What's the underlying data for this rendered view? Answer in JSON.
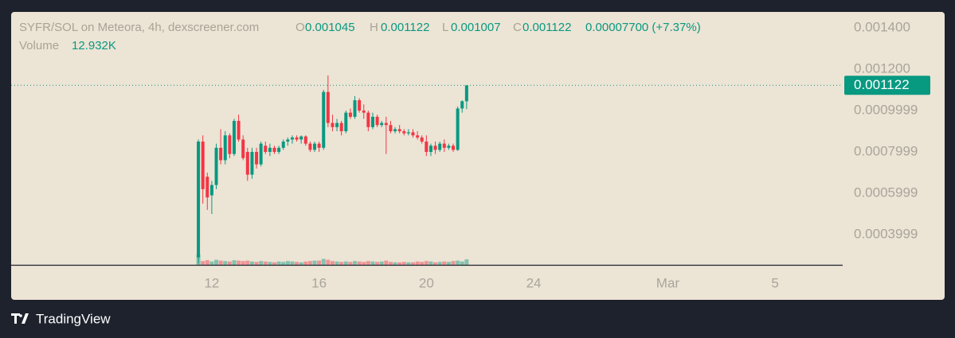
{
  "chart_data": {
    "type": "candlestick",
    "title": "SYFR/SOL on Meteora, 4h, dexscreener.com",
    "ohlc_labels": [
      "O",
      "H",
      "L",
      "C"
    ],
    "change_label": "0.00007700 (+7.37%)",
    "volume_title": "Volume",
    "volume_label": "12.932K",
    "up_color": "#089981",
    "down_color": "#f23645",
    "x": [
      11.5,
      11.667,
      11.833,
      12,
      12.167,
      12.333,
      12.5,
      12.667,
      12.833,
      13,
      13.167,
      13.333,
      13.5,
      13.667,
      13.833,
      14,
      14.167,
      14.333,
      14.5,
      14.667,
      14.833,
      15,
      15.167,
      15.333,
      15.5,
      15.667,
      15.833,
      16,
      16.167,
      16.333,
      16.5,
      16.667,
      16.833,
      17,
      17.167,
      17.333,
      17.5,
      17.667,
      17.833,
      18,
      18.167,
      18.333,
      18.5,
      18.667,
      18.833,
      19,
      19.167,
      19.333,
      19.5,
      19.667,
      19.833,
      20,
      20.167,
      20.333,
      20.5,
      20.667,
      20.833,
      21,
      21.167,
      21.333,
      21.5
    ],
    "open": [
      0.00029,
      0.00085,
      0.00068,
      0.00059,
      0.00064,
      0.00082,
      0.00076,
      0.00088,
      0.00079,
      0.00095,
      0.00086,
      0.0008,
      0.00069,
      0.0008,
      0.00074,
      0.00083,
      0.0008,
      0.00082,
      0.0008,
      0.00082,
      0.00085,
      0.00086,
      0.00087,
      0.00086,
      0.000875,
      0.00084,
      0.00081,
      0.00084,
      0.00082,
      0.00109,
      0.00094,
      0.00092,
      0.00094,
      0.0009,
      0.00099,
      0.00097,
      0.00105,
      0.001,
      0.00099,
      0.00092,
      0.00097,
      0.00093,
      0.00094,
      0.00093,
      0.0009,
      0.00091,
      0.0009,
      0.00089,
      0.000895,
      0.00088,
      0.00087,
      0.00085,
      0.0008,
      0.00083,
      0.00081,
      0.00084,
      0.00082,
      0.00083,
      0.00081,
      0.00101,
      0.001045
    ],
    "high": [
      0.00086,
      0.00088,
      0.0007,
      0.00066,
      0.00084,
      0.00091,
      0.0009,
      0.00089,
      0.00096,
      0.00098,
      0.00088,
      0.00082,
      0.00082,
      0.00082,
      0.00085,
      0.00085,
      0.00084,
      0.00083,
      0.00083,
      0.00086,
      0.00087,
      0.00088,
      0.00088,
      0.00088,
      0.00088,
      0.00085,
      0.00085,
      0.00085,
      0.0011,
      0.00117,
      0.00098,
      0.00096,
      0.00095,
      0.001,
      0.00101,
      0.00107,
      0.00106,
      0.00103,
      0.001,
      0.00099,
      0.00098,
      0.00095,
      0.00097,
      0.00095,
      0.00092,
      0.00093,
      0.00091,
      0.00091,
      0.00091,
      0.0009,
      0.00088,
      0.00088,
      0.00084,
      0.00085,
      0.00085,
      0.00086,
      0.00084,
      0.00084,
      0.00102,
      0.00105,
      0.001122
    ],
    "low": [
      0.00026,
      0.00055,
      0.00052,
      0.0005,
      0.00062,
      0.00074,
      0.00074,
      0.00077,
      0.00078,
      0.00085,
      0.00076,
      0.00066,
      0.00067,
      0.00072,
      0.00073,
      0.00079,
      0.00078,
      0.00079,
      0.00079,
      0.00081,
      0.00083,
      0.00084,
      0.00085,
      0.00084,
      0.00083,
      0.0008,
      0.0008,
      0.0008,
      0.00081,
      0.00092,
      0.0009,
      0.0009,
      0.00088,
      0.00089,
      0.00096,
      0.00096,
      0.00099,
      0.00096,
      0.0009,
      0.00091,
      0.00092,
      0.00092,
      0.00079,
      0.00089,
      0.00089,
      0.00089,
      0.00088,
      0.00088,
      0.00087,
      0.00086,
      0.00084,
      0.00078,
      0.00078,
      0.00079,
      0.0008,
      0.0008,
      0.00081,
      0.0008,
      0.000805,
      0.00099,
      0.001007
    ],
    "close": [
      0.00085,
      0.00062,
      0.00058,
      0.00064,
      0.00082,
      0.00076,
      0.00088,
      0.00079,
      0.00095,
      0.00086,
      0.00077,
      0.00069,
      0.0008,
      0.00074,
      0.00084,
      0.0008,
      0.00082,
      0.0008,
      0.00082,
      0.00085,
      0.00086,
      0.00087,
      0.00086,
      0.000875,
      0.00084,
      0.00081,
      0.00084,
      0.00082,
      0.00109,
      0.00094,
      0.00092,
      0.00094,
      0.0009,
      0.00099,
      0.00097,
      0.00105,
      0.001,
      0.00099,
      0.00092,
      0.00097,
      0.00093,
      0.00094,
      0.00093,
      0.0009,
      0.00091,
      0.0009,
      0.00089,
      0.000895,
      0.00088,
      0.00087,
      0.00085,
      0.0008,
      0.00083,
      0.00081,
      0.00084,
      0.00082,
      0.00083,
      0.00081,
      0.00101,
      0.001045,
      0.001122
    ],
    "volume": [
      25,
      9,
      11,
      8,
      12,
      10,
      9,
      8,
      11,
      10,
      9,
      10,
      8,
      7,
      9,
      8,
      7,
      6,
      8,
      7,
      9,
      8,
      7,
      6,
      8,
      9,
      10,
      10,
      14,
      12,
      9,
      8,
      7,
      8,
      7,
      9,
      8,
      7,
      9,
      8,
      7,
      8,
      10,
      7,
      6,
      6,
      7,
      6,
      6,
      8,
      7,
      9,
      8,
      6,
      7,
      8,
      7,
      9,
      10,
      8,
      12.932
    ],
    "volume_lim": [
      0,
      600
    ],
    "xlim": [
      4.52,
      35.52
    ],
    "xticks": [
      12,
      16,
      20,
      24,
      {
        "value": 29,
        "label": "Mar"
      },
      {
        "value": 33,
        "label": "5"
      }
    ],
    "ylim": [
      0.000254,
      0.001477
    ],
    "yticks": [
      {
        "value": 0.0014,
        "label": "0.001400"
      },
      {
        "value": 0.0012,
        "label": "0.001200"
      },
      {
        "value": 0.001,
        "label": "0.0009999"
      },
      {
        "value": 0.0008,
        "label": "0.0007999"
      },
      {
        "value": 0.0006,
        "label": "0.0005999"
      },
      {
        "value": 0.0004,
        "label": "0.0003999"
      }
    ]
  },
  "footer": {
    "brand": "TradingView"
  }
}
